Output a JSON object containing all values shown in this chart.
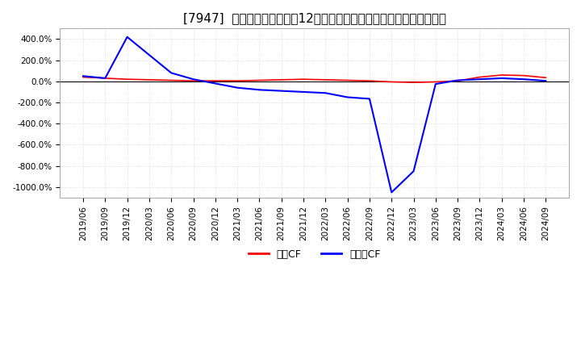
{
  "title": "[7947]  キャッシュフローの12か月移動合計の対前年同期増減率の推移",
  "ylim": [
    -1100,
    500
  ],
  "yticks": [
    400,
    200,
    0,
    -200,
    -400,
    -600,
    -800,
    -1000
  ],
  "legend_labels": [
    "営業CF",
    "フリーCF"
  ],
  "line_colors": [
    "#ff0000",
    "#0000ff"
  ],
  "x_dates": [
    "2019/06",
    "2019/09",
    "2019/12",
    "2020/03",
    "2020/06",
    "2020/09",
    "2020/12",
    "2021/03",
    "2021/06",
    "2021/09",
    "2021/12",
    "2022/03",
    "2022/06",
    "2022/09",
    "2022/12",
    "2023/03",
    "2023/06",
    "2023/09",
    "2023/12",
    "2024/03",
    "2024/06",
    "2024/09"
  ],
  "operating_cf": [
    40,
    30,
    20,
    15,
    10,
    5,
    5,
    5,
    10,
    15,
    20,
    15,
    10,
    5,
    -5,
    -10,
    -5,
    5,
    40,
    60,
    55,
    35
  ],
  "free_cf": [
    50,
    30,
    420,
    250,
    80,
    20,
    -20,
    -60,
    -80,
    -90,
    -100,
    -110,
    -150,
    -165,
    -1050,
    -850,
    -25,
    10,
    20,
    30,
    20,
    5
  ],
  "background_color": "#ffffff",
  "grid_color": "#cccccc",
  "grid_linestyle": "dotted",
  "title_fontsize": 11,
  "tick_fontsize": 7.5
}
